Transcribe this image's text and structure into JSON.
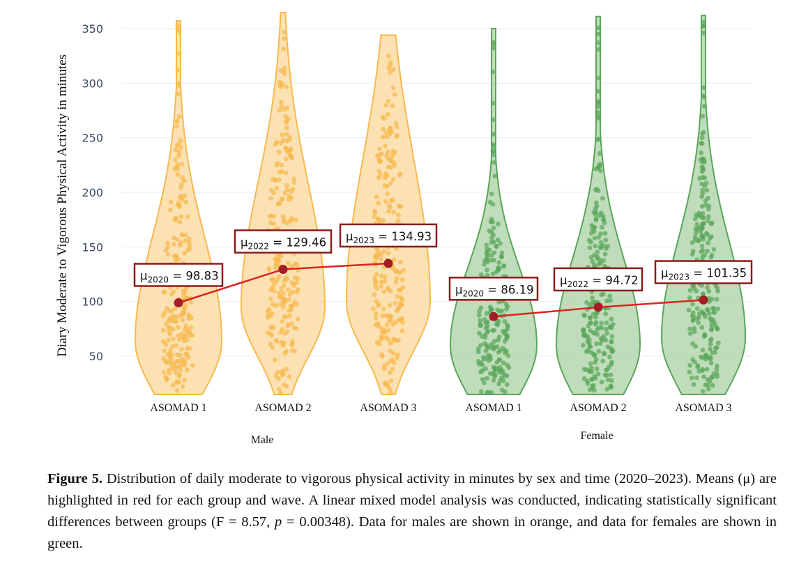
{
  "chart_data": {
    "type": "violin",
    "ylabel": "Diary Moderate to Vigorous Physical Activity in minutes",
    "ylim": [
      15,
      360
    ],
    "yticks": [
      50,
      100,
      150,
      200,
      250,
      300,
      350
    ],
    "groups": [
      {
        "name": "Male",
        "color": "#f7b94e",
        "fill": "#fbd79a",
        "categories": [
          "ASOMAD 1",
          "ASOMAD 2",
          "ASOMAD 3"
        ],
        "means": [
          98.83,
          129.46,
          134.93
        ],
        "mean_labels": [
          {
            "sym": "μ",
            "year": "2020",
            "text": " = 98.83"
          },
          {
            "sym": "μ",
            "year": "2022",
            "text": " = 129.46"
          },
          {
            "sym": "μ",
            "year": "2023",
            "text": " = 134.93"
          }
        ],
        "ranges": [
          [
            15,
            357
          ],
          [
            15,
            365
          ],
          [
            15,
            344
          ]
        ]
      },
      {
        "name": "Female",
        "color": "#5aa55a",
        "fill": "#a9d2a3",
        "categories": [
          "ASOMAD 1",
          "ASOMAD 2",
          "ASOMAD 3"
        ],
        "means": [
          86.19,
          94.72,
          101.35
        ],
        "mean_labels": [
          {
            "sym": "μ",
            "year": "2020",
            "text": " = 86.19"
          },
          {
            "sym": "μ",
            "year": "2022",
            "text": " = 94.72"
          },
          {
            "sym": "μ",
            "year": "2023",
            "text": " = 101.35"
          }
        ],
        "ranges": [
          [
            15,
            350
          ],
          [
            15,
            361
          ],
          [
            15,
            362
          ]
        ]
      }
    ],
    "mean_color": "#e02020",
    "mean_marker_color": "#a31d24"
  },
  "caption": {
    "label": "Figure 5.",
    "text": " Distribution of daily moderate to vigorous physical activity in minutes by sex and time (2020–2023). Means (μ) are highlighted in red for each group and wave. A linear mixed model analysis was conducted, indicating statistically significant differences between groups (F = 8.57, ",
    "p_symbol": "p",
    "text_after": " = 0.00348). Data for males are shown in orange, and data for females are shown in green."
  }
}
